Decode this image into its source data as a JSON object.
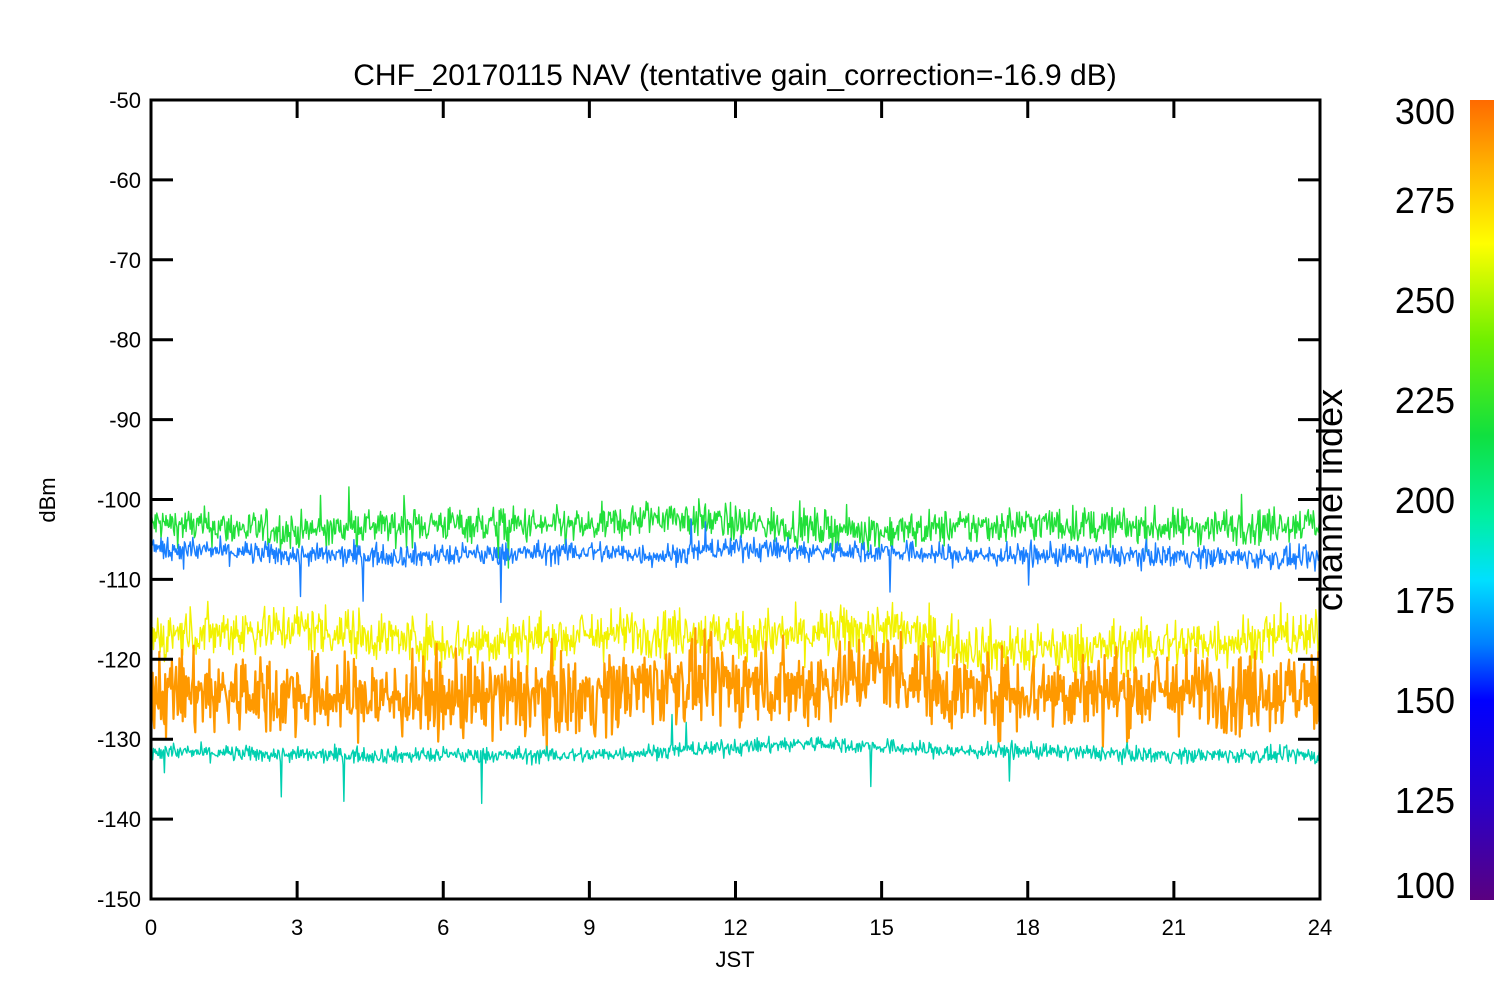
{
  "chart_data": {
    "type": "line",
    "title": "CHF_20170115 NAV (tentative gain_correction=-16.9 dB)",
    "xlabel": "JST",
    "ylabel": "dBm",
    "xlim": [
      0,
      24
    ],
    "ylim": [
      -150,
      -50
    ],
    "x_ticks": [
      0,
      3,
      6,
      9,
      12,
      15,
      18,
      21,
      24
    ],
    "y_ticks": [
      -150,
      -140,
      -130,
      -120,
      -110,
      -100,
      -90,
      -80,
      -70,
      -60,
      -50
    ],
    "grid": false,
    "colorbar": {
      "label": "channel index",
      "range": [
        100,
        300
      ],
      "ticks": [
        100,
        125,
        150,
        175,
        200,
        225,
        250,
        275,
        300
      ]
    },
    "series": [
      {
        "color": "#22e03a",
        "channel": 220,
        "x": [
          0,
          3,
          6,
          9,
          10.5,
          12,
          13.5,
          15,
          16.5,
          18,
          21,
          24
        ],
        "values": [
          -103,
          -104,
          -103,
          -103.5,
          -102,
          -103,
          -103.5,
          -104,
          -103.5,
          -103,
          -103.5,
          -103
        ]
      },
      {
        "color": "#1a7fff",
        "channel": 160,
        "x": [
          0,
          3,
          6,
          9,
          10.5,
          12,
          13.5,
          15,
          16.5,
          18,
          21,
          24
        ],
        "values": [
          -106,
          -107,
          -107,
          -106.5,
          -107,
          -106,
          -106.5,
          -106.5,
          -107,
          -107,
          -107,
          -107.5
        ]
      },
      {
        "color": "#f2f200",
        "channel": 275,
        "x": [
          0,
          3,
          6,
          9,
          10.5,
          12,
          13.5,
          15,
          16.5,
          18,
          21,
          24
        ],
        "values": [
          -117,
          -116,
          -118,
          -117,
          -116.5,
          -117,
          -117,
          -116,
          -118,
          -119,
          -118,
          -117
        ]
      },
      {
        "color": "#ff9900",
        "channel": 300,
        "x": [
          0,
          3,
          6,
          9,
          10.5,
          12,
          13.5,
          15,
          16.5,
          18,
          21,
          24
        ],
        "values": [
          -124,
          -124.5,
          -125,
          -124.5,
          -123,
          -123,
          -123.5,
          -121,
          -124,
          -124,
          -124,
          -124
        ]
      },
      {
        "color": "#00d0b0",
        "channel": 200,
        "x": [
          0,
          3,
          6,
          9,
          10.5,
          12,
          13.5,
          15,
          16.5,
          18,
          21,
          24
        ],
        "values": [
          -131.5,
          -132,
          -132,
          -132,
          -131.5,
          -131,
          -130.5,
          -131,
          -131.5,
          -131.5,
          -132,
          -132
        ]
      }
    ]
  }
}
